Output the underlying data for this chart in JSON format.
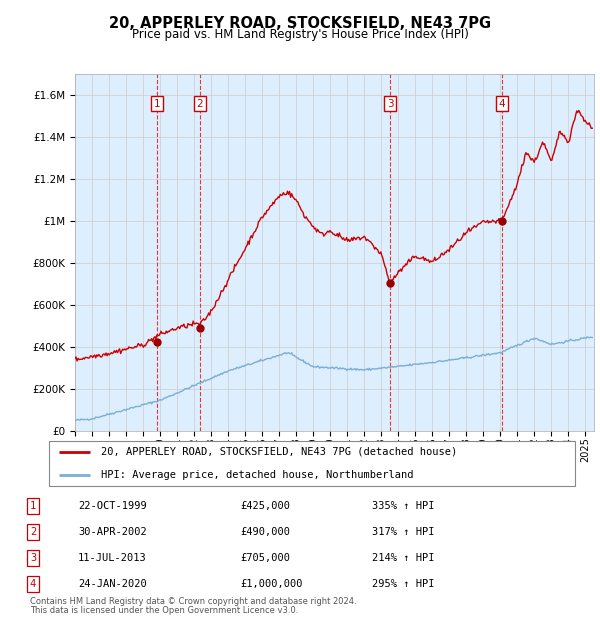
{
  "title": "20, APPERLEY ROAD, STOCKSFIELD, NE43 7PG",
  "subtitle": "Price paid vs. HM Land Registry's House Price Index (HPI)",
  "footer1": "Contains HM Land Registry data © Crown copyright and database right 2024.",
  "footer2": "This data is licensed under the Open Government Licence v3.0.",
  "legend_line1": "20, APPERLEY ROAD, STOCKSFIELD, NE43 7PG (detached house)",
  "legend_line2": "HPI: Average price, detached house, Northumberland",
  "sales": [
    {
      "label": "1",
      "date": "22-OCT-1999",
      "price": 425000,
      "hpi_pct": "335% ↑ HPI",
      "x_year": 1999.81
    },
    {
      "label": "2",
      "date": "30-APR-2002",
      "price": 490000,
      "hpi_pct": "317% ↑ HPI",
      "x_year": 2002.33
    },
    {
      "label": "3",
      "date": "11-JUL-2013",
      "price": 705000,
      "hpi_pct": "214% ↑ HPI",
      "x_year": 2013.53
    },
    {
      "label": "4",
      "date": "24-JAN-2020",
      "price": 1000000,
      "hpi_pct": "295% ↑ HPI",
      "x_year": 2020.07
    }
  ],
  "table_rows": [
    [
      "1",
      "22-OCT-1999",
      "£425,000",
      "335% ↑ HPI"
    ],
    [
      "2",
      "30-APR-2002",
      "£490,000",
      "317% ↑ HPI"
    ],
    [
      "3",
      "11-JUL-2013",
      "£705,000",
      "214% ↑ HPI"
    ],
    [
      "4",
      "24-JAN-2020",
      "£1,000,000",
      "295% ↑ HPI"
    ]
  ],
  "ylim": [
    0,
    1700000
  ],
  "xlim_start": 1995.0,
  "xlim_end": 2025.5,
  "hpi_color": "#7bafd4",
  "price_color": "#cc0000",
  "vline_color": "#ee3333",
  "shade_color": "#ddeeff",
  "grid_color": "#cccccc",
  "label_box_color": "#cc0000",
  "yticks": [
    0,
    200000,
    400000,
    600000,
    800000,
    1000000,
    1200000,
    1400000,
    1600000
  ],
  "ytick_labels": [
    "£0",
    "£200K",
    "£400K",
    "£600K",
    "£800K",
    "£1M",
    "£1.2M",
    "£1.4M",
    "£1.6M"
  ],
  "xticks": [
    1995,
    1996,
    1997,
    1998,
    1999,
    2000,
    2001,
    2002,
    2003,
    2004,
    2005,
    2006,
    2007,
    2008,
    2009,
    2010,
    2011,
    2012,
    2013,
    2014,
    2015,
    2016,
    2017,
    2018,
    2019,
    2020,
    2021,
    2022,
    2023,
    2024,
    2025
  ]
}
